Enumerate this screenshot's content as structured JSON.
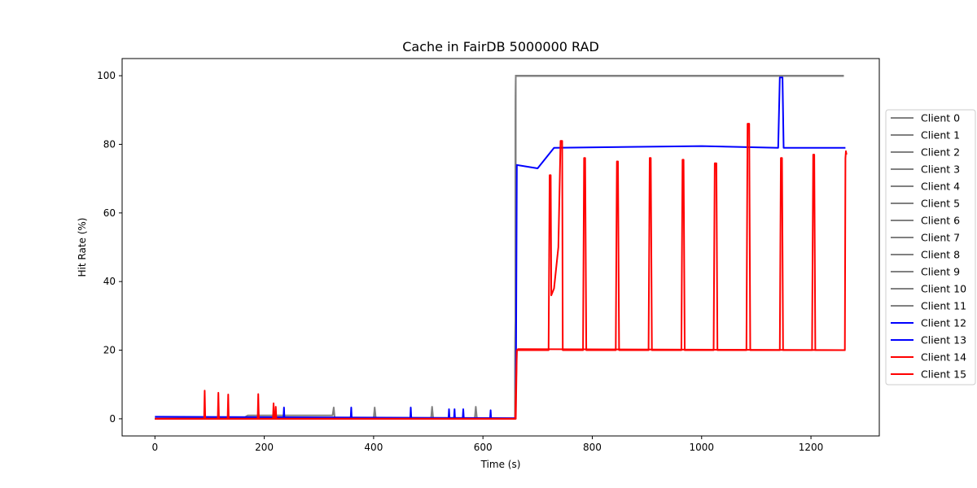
{
  "chart_data": {
    "type": "line",
    "title": "Cache in  FairDB 5000000 RAD",
    "xlabel": "Time (s)",
    "ylabel": "Hit Rate (%)",
    "xlim": [
      -60,
      1325
    ],
    "ylim": [
      -5,
      105
    ],
    "xticks": [
      0,
      200,
      400,
      600,
      800,
      1000,
      1200
    ],
    "yticks": [
      0,
      20,
      40,
      60,
      80,
      100
    ],
    "grid": false,
    "legend_position": "outside-right",
    "colors": {
      "Client 0": "#808080",
      "Client 1": "#808080",
      "Client 2": "#808080",
      "Client 3": "#808080",
      "Client 4": "#808080",
      "Client 5": "#808080",
      "Client 6": "#808080",
      "Client 7": "#808080",
      "Client 8": "#808080",
      "Client 9": "#808080",
      "Client 10": "#808080",
      "Client 11": "#808080",
      "Client 12": "#0000ff",
      "Client 13": "#0000ff",
      "Client 14": "#ff0000",
      "Client 15": "#ff0000"
    },
    "series": [
      {
        "name": "Client 0",
        "x": [
          0,
          160,
          170,
          325,
          327,
          329,
          400,
          402,
          404,
          505,
          507,
          509,
          585,
          587,
          589,
          659,
          660,
          661,
          1260
        ],
        "y": [
          0,
          0,
          1,
          1,
          3.3,
          0,
          0,
          3.3,
          0,
          0,
          3.5,
          0,
          0,
          3.5,
          0,
          0,
          100,
          100,
          100
        ]
      },
      {
        "name": "Client 1",
        "x": [
          0,
          659,
          660,
          1260
        ],
        "y": [
          0,
          0,
          100,
          100
        ]
      },
      {
        "name": "Client 2",
        "x": [
          0,
          659,
          660,
          1260
        ],
        "y": [
          0,
          0,
          100,
          100
        ]
      },
      {
        "name": "Client 3",
        "x": [
          0,
          659,
          660,
          1260
        ],
        "y": [
          0,
          0,
          100,
          100
        ]
      },
      {
        "name": "Client 4",
        "x": [
          0,
          659,
          660,
          1260
        ],
        "y": [
          0,
          0,
          100,
          100
        ]
      },
      {
        "name": "Client 5",
        "x": [
          0,
          659,
          660,
          1260
        ],
        "y": [
          0,
          0,
          100,
          100
        ]
      },
      {
        "name": "Client 6",
        "x": [
          0,
          659,
          660,
          1260
        ],
        "y": [
          0,
          0,
          100,
          100
        ]
      },
      {
        "name": "Client 7",
        "x": [
          0,
          659,
          660,
          1260
        ],
        "y": [
          0,
          0,
          100,
          100
        ]
      },
      {
        "name": "Client 8",
        "x": [
          0,
          659,
          660,
          1260
        ],
        "y": [
          0,
          0,
          100,
          100
        ]
      },
      {
        "name": "Client 9",
        "x": [
          0,
          659,
          660,
          1260
        ],
        "y": [
          0,
          0,
          100,
          100
        ]
      },
      {
        "name": "Client 10",
        "x": [
          0,
          659,
          660,
          1260
        ],
        "y": [
          0,
          0,
          100,
          100
        ]
      },
      {
        "name": "Client 11",
        "x": [
          0,
          659,
          660,
          1260
        ],
        "y": [
          0,
          0,
          100,
          100
        ]
      },
      {
        "name": "Client 12",
        "x": [
          0,
          660,
          662,
          700,
          730,
          1000,
          1140,
          1143,
          1145,
          1148,
          1150,
          1263
        ],
        "y": [
          0.6,
          0.2,
          74,
          73,
          79,
          79.5,
          79,
          99.5,
          99.5,
          99.5,
          79,
          79
        ]
      },
      {
        "name": "Client 13",
        "x": [
          0,
          235,
          236,
          237,
          358,
          359,
          360,
          467,
          468,
          469,
          537,
          538,
          539,
          547,
          548,
          549,
          563,
          564,
          565,
          613,
          614,
          615,
          659
        ],
        "y": [
          0,
          0,
          3.3,
          0,
          0,
          3.3,
          0,
          0,
          3.3,
          0,
          0,
          2.8,
          0,
          0,
          2.8,
          0,
          0,
          2.8,
          0,
          0,
          2.5,
          0,
          0
        ]
      },
      {
        "name": "Client 14",
        "x": [
          0,
          90,
          91,
          92,
          115,
          116,
          117,
          133,
          134,
          135,
          188,
          189,
          190,
          216,
          217,
          218,
          220,
          221,
          222,
          659,
          662,
          664,
          1263
        ],
        "y": [
          0,
          0,
          8.2,
          0,
          0,
          7.6,
          0,
          0,
          7.1,
          0,
          0,
          7.2,
          0,
          0,
          4.5,
          0,
          0,
          3.5,
          0,
          0,
          20,
          20.3,
          20
        ]
      },
      {
        "name": "Client 15",
        "x": [
          0,
          660,
          662,
          720,
          722,
          724,
          725,
          730,
          738,
          742,
          745,
          746,
          783,
          785,
          787,
          789,
          843,
          845,
          847,
          849,
          903,
          905,
          907,
          909,
          963,
          965,
          967,
          969,
          1022,
          1024,
          1027,
          1029,
          1082,
          1084,
          1087,
          1089,
          1143,
          1145,
          1147,
          1149,
          1202,
          1204,
          1206,
          1208,
          1262,
          1263,
          1264,
          1265
        ],
        "y": [
          0,
          0,
          20,
          20,
          71,
          71,
          36,
          38,
          50,
          81,
          81,
          20,
          20,
          76,
          76,
          20,
          20,
          75,
          75,
          20,
          20,
          76,
          76,
          20,
          20,
          75.5,
          75.5,
          20,
          20,
          74.5,
          74.5,
          20,
          20,
          86,
          86,
          20,
          20,
          76,
          76,
          20,
          20,
          77,
          77,
          20,
          20,
          76,
          78,
          77
        ]
      }
    ]
  }
}
